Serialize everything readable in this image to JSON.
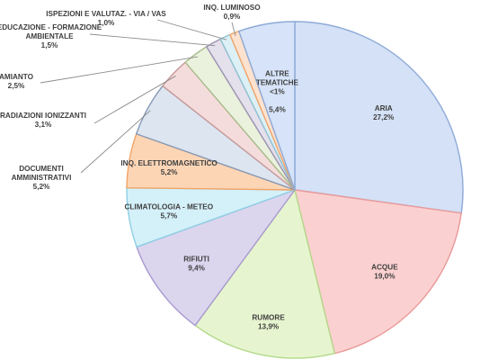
{
  "chart_data": {
    "type": "pie",
    "title": "",
    "start": "12 o'clock, clockwise",
    "slices": [
      {
        "label": "ARIA",
        "display": "27,2%",
        "value": 27.2,
        "color": "#d4e1f6",
        "edge": "#8eaad8"
      },
      {
        "label": "ACQUE",
        "display": "19,0%",
        "value": 19.0,
        "color": "#fbd0d0",
        "edge": "#e99a9a"
      },
      {
        "label": "RUMORE",
        "display": "13,9%",
        "value": 13.9,
        "color": "#e6f5cf",
        "edge": "#b3d88a"
      },
      {
        "label": "RIFIUTI",
        "display": "9,4%",
        "value": 9.4,
        "color": "#dcd5ee",
        "edge": "#a99ad0"
      },
      {
        "label": "CLIMATOLOGIA - METEO",
        "display": "5,7%",
        "value": 5.7,
        "color": "#d4f0f9",
        "edge": "#8ecfe3"
      },
      {
        "label": "INQ. ELETTROMAGNETICO",
        "display": "5,2%",
        "value": 5.2,
        "color": "#fcd5b5",
        "edge": "#f1a466"
      },
      {
        "label": "DOCUMENTI AMMINISTRATIVI",
        "display": "5,2%",
        "value": 5.2,
        "color": "#dde5f0",
        "edge": "#8699b5"
      },
      {
        "label": "RADIAZIONI IONIZZANTI",
        "display": "3,1%",
        "value": 3.1,
        "color": "#f5dcdc",
        "edge": "#c79a9a"
      },
      {
        "label": "AMIANTO",
        "display": "2,5%",
        "value": 2.5,
        "color": "#eaf1dd",
        "edge": "#a9bd8c"
      },
      {
        "label": "EDUCAZIONE - FORMAZIONE AMBIENTALE",
        "display": "1,5%",
        "value": 1.5,
        "color": "#e4e0ec",
        "edge": "#9d93b3"
      },
      {
        "label": "ISPEZIONI E VALUTAZ. - VIA / VAS",
        "display": "1,0%",
        "value": 1.0,
        "color": "#ddf0f5",
        "edge": "#8fc3d2"
      },
      {
        "label": "INQ. LUMINOSO",
        "display": "0,9%",
        "value": 0.9,
        "color": "#fde3cf",
        "edge": "#f2a46a"
      },
      {
        "label": "ALTRE TEMATICHE <1%",
        "display": "5,4%",
        "value": 5.4,
        "color": "#d6e3f8",
        "edge": "#8eaad8"
      }
    ]
  }
}
